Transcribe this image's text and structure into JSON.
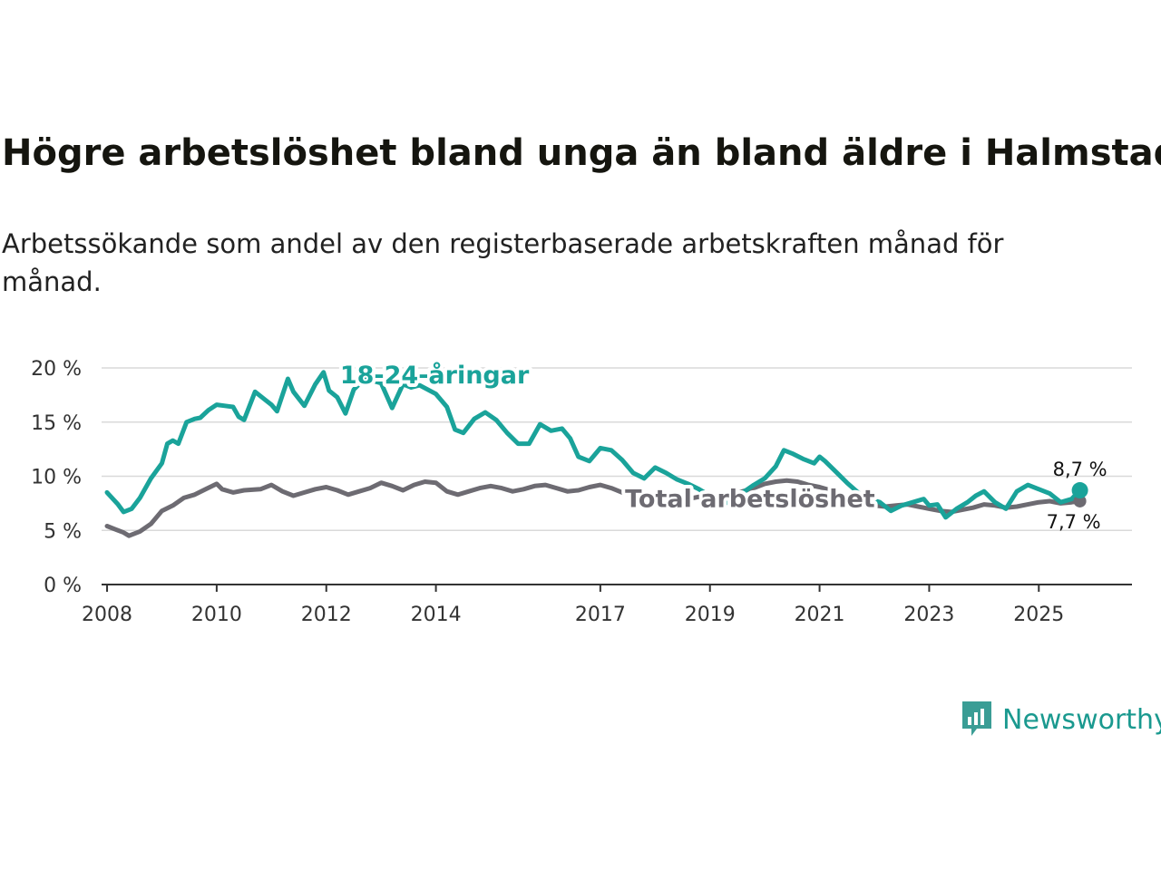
{
  "header": {
    "title": "Högre arbetslöshet bland unga än bland äldre i Halmstad",
    "subtitle": "Arbetssökande som andel av den registerbaserade arbetskraften månad för månad."
  },
  "brand": {
    "name": "Newsworthy",
    "icon": "newsworthy-logo-icon",
    "color": "#1a998f"
  },
  "chart_data": {
    "type": "line",
    "title": "Högre arbetslöshet bland unga än bland äldre i Halmstad",
    "subtitle": "Arbetssökande som andel av den registerbaserade arbetskraften månad för månad.",
    "xlabel": "",
    "ylabel": "",
    "xlim": [
      2007.9,
      2026.7
    ],
    "ylim": [
      0,
      20
    ],
    "yticks": [
      0,
      5,
      10,
      15,
      20
    ],
    "ytick_labels": [
      "0 %",
      "5 %",
      "10 %",
      "15 %",
      "20 %"
    ],
    "xticks": [
      2008,
      2010,
      2012,
      2014,
      2017,
      2019,
      2021,
      2023,
      2025
    ],
    "xtick_labels": [
      "2008",
      "2010",
      "2012",
      "2014",
      "2017",
      "2019",
      "2021",
      "2023",
      "2025"
    ],
    "grid": true,
    "series": [
      {
        "name": "Total arbetslöshet",
        "color": "#6d6b72",
        "x": [
          2008.0,
          2008.3,
          2008.4,
          2008.6,
          2008.8,
          2009.0,
          2009.2,
          2009.4,
          2009.6,
          2009.8,
          2010.0,
          2010.1,
          2010.3,
          2010.5,
          2010.8,
          2011.0,
          2011.2,
          2011.4,
          2011.6,
          2011.8,
          2012.0,
          2012.2,
          2012.4,
          2012.6,
          2012.8,
          2013.0,
          2013.2,
          2013.4,
          2013.6,
          2013.8,
          2014.0,
          2014.2,
          2014.4,
          2014.6,
          2014.8,
          2015.0,
          2015.2,
          2015.4,
          2015.6,
          2015.8,
          2016.0,
          2016.2,
          2016.4,
          2016.6,
          2016.8,
          2017.0,
          2017.2,
          2017.4,
          2017.6,
          2017.8,
          2018.0,
          2018.2,
          2018.4,
          2018.6,
          2018.8,
          2019.0,
          2019.2,
          2019.4,
          2019.6,
          2019.8,
          2020.0,
          2020.2,
          2020.4,
          2020.6,
          2020.8,
          2021.0,
          2021.2,
          2021.4,
          2021.6,
          2021.8,
          2022.0,
          2022.2,
          2022.4,
          2022.6,
          2022.8,
          2023.0,
          2023.2,
          2023.4,
          2023.6,
          2023.8,
          2024.0,
          2024.2,
          2024.4,
          2024.6,
          2024.8,
          2025.0,
          2025.2,
          2025.4,
          2025.6,
          2025.75
        ],
        "values": [
          5.4,
          4.8,
          4.5,
          4.9,
          5.6,
          6.8,
          7.3,
          8.0,
          8.3,
          8.8,
          9.3,
          8.8,
          8.5,
          8.7,
          8.8,
          9.2,
          8.6,
          8.2,
          8.5,
          8.8,
          9.0,
          8.7,
          8.3,
          8.6,
          8.9,
          9.4,
          9.1,
          8.7,
          9.2,
          9.5,
          9.4,
          8.6,
          8.3,
          8.6,
          8.9,
          9.1,
          8.9,
          8.6,
          8.8,
          9.1,
          9.2,
          8.9,
          8.6,
          8.7,
          9.0,
          9.2,
          8.9,
          8.5,
          8.2,
          7.9,
          7.7,
          7.5,
          7.6,
          7.9,
          8.1,
          8.0,
          7.9,
          8.3,
          8.6,
          8.9,
          9.3,
          9.5,
          9.6,
          9.5,
          9.2,
          9.0,
          8.7,
          8.3,
          8.0,
          7.6,
          7.3,
          7.2,
          7.3,
          7.4,
          7.2,
          7.0,
          6.8,
          6.7,
          6.9,
          7.1,
          7.4,
          7.3,
          7.1,
          7.2,
          7.4,
          7.6,
          7.7,
          7.5,
          7.6,
          7.7
        ]
      },
      {
        "name": "18-24-åringar",
        "color": "#1aa39a",
        "x": [
          2008.0,
          2008.2,
          2008.3,
          2008.45,
          2008.6,
          2008.8,
          2009.0,
          2009.1,
          2009.2,
          2009.3,
          2009.45,
          2009.6,
          2009.7,
          2009.85,
          2010.0,
          2010.15,
          2010.3,
          2010.4,
          2010.5,
          2010.7,
          2010.9,
          2011.0,
          2011.1,
          2011.3,
          2011.4,
          2011.6,
          2011.8,
          2011.95,
          2012.05,
          2012.2,
          2012.35,
          2012.5,
          2012.7,
          2013.0,
          2013.2,
          2013.4,
          2013.55,
          2013.7,
          2014.0,
          2014.2,
          2014.35,
          2014.5,
          2014.7,
          2014.9,
          2015.1,
          2015.3,
          2015.5,
          2015.7,
          2015.9,
          2016.1,
          2016.3,
          2016.45,
          2016.6,
          2016.8,
          2017.0,
          2017.2,
          2017.4,
          2017.6,
          2017.8,
          2018.0,
          2018.2,
          2018.4,
          2018.6,
          2018.8,
          2019.0,
          2019.2,
          2019.4,
          2019.6,
          2019.8,
          2020.0,
          2020.2,
          2020.35,
          2020.5,
          2020.7,
          2020.9,
          2021.0,
          2021.1,
          2021.3,
          2021.5,
          2021.7,
          2021.9,
          2022.1,
          2022.3,
          2022.5,
          2022.7,
          2022.9,
          2023.0,
          2023.15,
          2023.3,
          2023.5,
          2023.7,
          2023.85,
          2024.0,
          2024.2,
          2024.4,
          2024.6,
          2024.8,
          2025.0,
          2025.2,
          2025.4,
          2025.6,
          2025.75
        ],
        "values": [
          8.5,
          7.4,
          6.7,
          7.0,
          8.0,
          9.8,
          11.2,
          13.0,
          13.3,
          13.0,
          15.0,
          15.3,
          15.4,
          16.1,
          16.6,
          16.5,
          16.4,
          15.5,
          15.2,
          17.8,
          17.0,
          16.6,
          16.0,
          19.0,
          17.8,
          16.5,
          18.5,
          19.6,
          17.9,
          17.3,
          15.8,
          18.0,
          19.0,
          18.6,
          16.3,
          18.5,
          18.2,
          18.4,
          17.6,
          16.4,
          14.3,
          14.0,
          15.3,
          15.9,
          15.2,
          14.0,
          13.0,
          13.0,
          14.8,
          14.2,
          14.4,
          13.5,
          11.8,
          11.4,
          12.6,
          12.4,
          11.5,
          10.3,
          9.8,
          10.8,
          10.3,
          9.7,
          9.3,
          8.8,
          8.2,
          7.5,
          7.6,
          8.5,
          9.2,
          9.8,
          10.9,
          12.4,
          12.1,
          11.6,
          11.2,
          11.8,
          11.4,
          10.4,
          9.4,
          8.5,
          7.9,
          7.6,
          6.8,
          7.3,
          7.6,
          7.9,
          7.3,
          7.4,
          6.2,
          7.0,
          7.6,
          8.2,
          8.6,
          7.6,
          7.0,
          8.6,
          9.2,
          8.8,
          8.4,
          7.6,
          7.9,
          8.7
        ]
      }
    ],
    "labels": [
      {
        "series": "18-24-åringar",
        "text": "18-24-åringar"
      },
      {
        "series": "Total arbetslöshet",
        "text": "Total arbetslöshet"
      }
    ],
    "end_labels": [
      {
        "series": "18-24-åringar",
        "text": "8,7 %",
        "value": 8.7
      },
      {
        "series": "Total arbetslöshet",
        "text": "7,7 %",
        "value": 7.7
      }
    ]
  }
}
